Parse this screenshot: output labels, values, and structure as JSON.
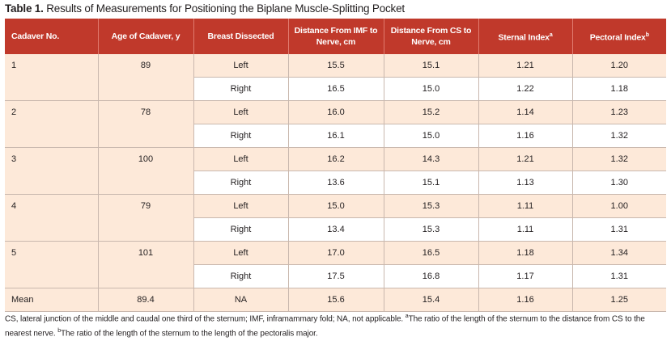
{
  "caption": {
    "label": "Table 1.",
    "title": "Results of Measurements for Positioning the Biplane Muscle-Splitting Pocket"
  },
  "table": {
    "headers": {
      "cadaver": "Cadaver No.",
      "age": "Age of Cadaver, y",
      "breast": "Breast Dissected",
      "imf": "Distance From IMF to Nerve, cm",
      "cs": "Distance From CS to Nerve, cm",
      "sternal": "Sternal Index",
      "sternal_sup": "a",
      "pectoral": "Pectoral Index",
      "pectoral_sup": "b"
    },
    "cadavers": [
      {
        "no": "1",
        "age": "89",
        "rows": [
          {
            "breast": "Left",
            "imf": "15.5",
            "cs": "15.1",
            "sternal": "1.21",
            "pectoral": "1.20"
          },
          {
            "breast": "Right",
            "imf": "16.5",
            "cs": "15.0",
            "sternal": "1.22",
            "pectoral": "1.18"
          }
        ]
      },
      {
        "no": "2",
        "age": "78",
        "rows": [
          {
            "breast": "Left",
            "imf": "16.0",
            "cs": "15.2",
            "sternal": "1.14",
            "pectoral": "1.23"
          },
          {
            "breast": "Right",
            "imf": "16.1",
            "cs": "15.0",
            "sternal": "1.16",
            "pectoral": "1.32"
          }
        ]
      },
      {
        "no": "3",
        "age": "100",
        "rows": [
          {
            "breast": "Left",
            "imf": "16.2",
            "cs": "14.3",
            "sternal": "1.21",
            "pectoral": "1.32"
          },
          {
            "breast": "Right",
            "imf": "13.6",
            "cs": "15.1",
            "sternal": "1.13",
            "pectoral": "1.30"
          }
        ]
      },
      {
        "no": "4",
        "age": "79",
        "rows": [
          {
            "breast": "Left",
            "imf": "15.0",
            "cs": "15.3",
            "sternal": "1.11",
            "pectoral": "1.00"
          },
          {
            "breast": "Right",
            "imf": "13.4",
            "cs": "15.3",
            "sternal": "1.11",
            "pectoral": "1.31"
          }
        ]
      },
      {
        "no": "5",
        "age": "101",
        "rows": [
          {
            "breast": "Left",
            "imf": "17.0",
            "cs": "16.5",
            "sternal": "1.18",
            "pectoral": "1.34"
          },
          {
            "breast": "Right",
            "imf": "17.5",
            "cs": "16.8",
            "sternal": "1.17",
            "pectoral": "1.31"
          }
        ]
      }
    ],
    "mean": {
      "label": "Mean",
      "age": "89.4",
      "breast": "NA",
      "imf": "15.6",
      "cs": "15.4",
      "sternal": "1.16",
      "pectoral": "1.25"
    }
  },
  "footnote": {
    "text1": "CS, lateral junction of the middle and caudal one third of the sternum; IMF, inframammary fold; NA, not applicable. ",
    "sup_a": "a",
    "text2": "The ratio of the length of the sternum to the distance from CS to the nearest nerve. ",
    "sup_b": "b",
    "text3": "The ratio of the length of the sternum to the length of the pectoralis major."
  },
  "colors": {
    "header_bg": "#c0392b",
    "shade_bg": "#fde9d9"
  }
}
